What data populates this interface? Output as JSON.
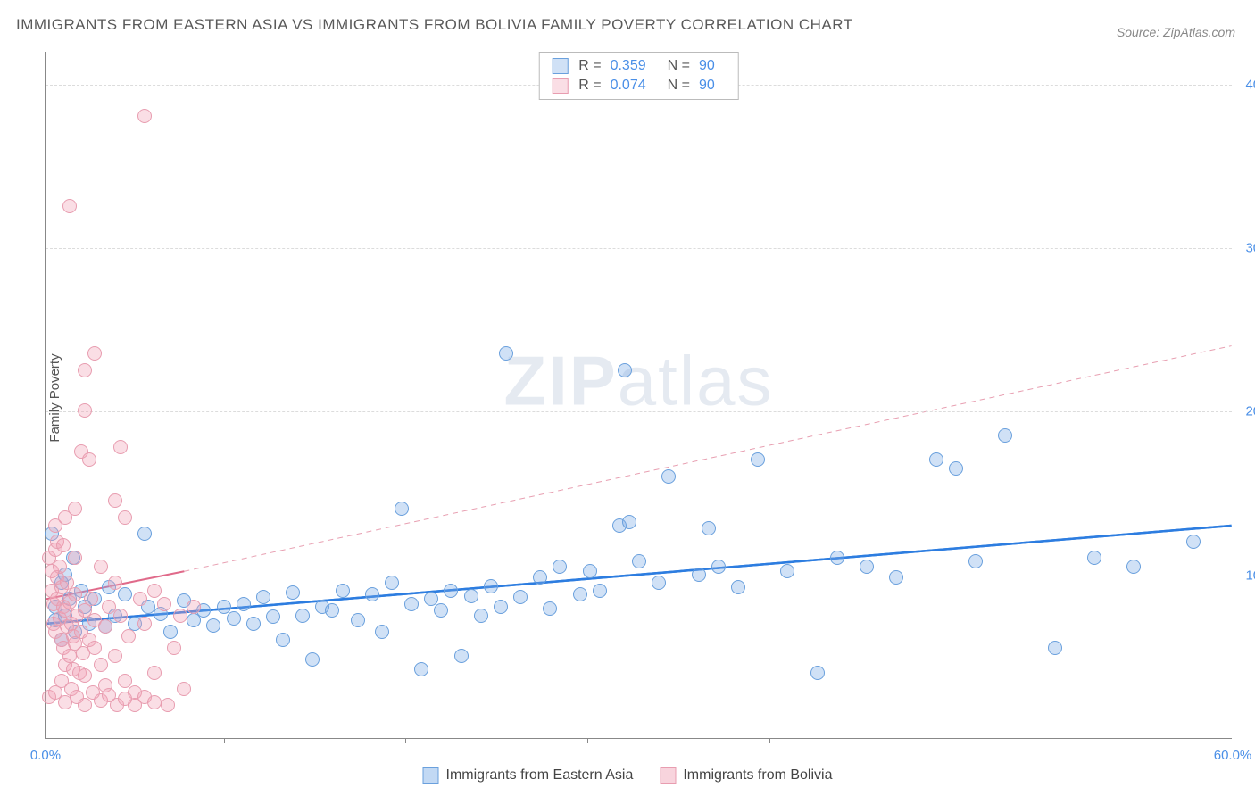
{
  "title": "IMMIGRANTS FROM EASTERN ASIA VS IMMIGRANTS FROM BOLIVIA FAMILY POVERTY CORRELATION CHART",
  "source": "Source: ZipAtlas.com",
  "y_axis_title": "Family Poverty",
  "watermark_bold": "ZIP",
  "watermark_light": "atlas",
  "chart": {
    "type": "scatter",
    "xlim": [
      0,
      60
    ],
    "ylim": [
      0,
      42
    ],
    "x_ticks": [
      0.0,
      60.0
    ],
    "x_minor_ticks": [
      9.0,
      18.2,
      27.4,
      36.6,
      45.8,
      55.0
    ],
    "x_tick_labels": [
      "0.0%",
      "60.0%"
    ],
    "y_ticks": [
      10.0,
      20.0,
      30.0,
      40.0
    ],
    "y_tick_labels": [
      "10.0%",
      "20.0%",
      "30.0%",
      "40.0%"
    ],
    "grid_color": "#dcdcdc",
    "background_color": "#ffffff",
    "axis_color": "#888888"
  },
  "series": [
    {
      "name": "Immigrants from Eastern Asia",
      "fill_color": "rgba(120,170,230,0.35)",
      "stroke_color": "#6aa0dd",
      "marker_radius": 8,
      "R_label": "R =",
      "R_value": "0.359",
      "N_label": "N =",
      "N_value": "90",
      "trend": {
        "x1": 0,
        "y1": 7.0,
        "x2": 60,
        "y2": 13.0,
        "color": "#2d7de0",
        "width": 2.5,
        "dash": "none"
      },
      "trend_extrap": {
        "x1": 0,
        "y1": 7.0,
        "x2": 60,
        "y2": 13.0,
        "color": "#2d7de0",
        "width": 2.5,
        "dash": "none"
      },
      "points": [
        [
          0.5,
          7.2
        ],
        [
          0.5,
          8.0
        ],
        [
          0.8,
          6.0
        ],
        [
          0.8,
          9.5
        ],
        [
          1.0,
          7.5
        ],
        [
          1.0,
          10.0
        ],
        [
          1.2,
          8.5
        ],
        [
          1.4,
          11.0
        ],
        [
          0.3,
          12.5
        ],
        [
          1.5,
          6.5
        ],
        [
          1.8,
          9.0
        ],
        [
          2.0,
          8.0
        ],
        [
          2.2,
          7.0
        ],
        [
          2.5,
          8.5
        ],
        [
          3.0,
          6.8
        ],
        [
          3.2,
          9.2
        ],
        [
          3.5,
          7.5
        ],
        [
          4.0,
          8.8
        ],
        [
          4.5,
          7.0
        ],
        [
          5.0,
          12.5
        ],
        [
          5.2,
          8.0
        ],
        [
          5.8,
          7.6
        ],
        [
          6.3,
          6.5
        ],
        [
          7.0,
          8.4
        ],
        [
          7.5,
          7.2
        ],
        [
          8.0,
          7.8
        ],
        [
          8.5,
          6.9
        ],
        [
          9.0,
          8.0
        ],
        [
          9.5,
          7.3
        ],
        [
          10.0,
          8.2
        ],
        [
          10.5,
          7.0
        ],
        [
          11.0,
          8.6
        ],
        [
          11.5,
          7.4
        ],
        [
          12.0,
          6.0
        ],
        [
          12.5,
          8.9
        ],
        [
          13.0,
          7.5
        ],
        [
          13.5,
          4.8
        ],
        [
          14.0,
          8.0
        ],
        [
          14.5,
          7.8
        ],
        [
          15.0,
          9.0
        ],
        [
          15.8,
          7.2
        ],
        [
          16.5,
          8.8
        ],
        [
          17.0,
          6.5
        ],
        [
          17.5,
          9.5
        ],
        [
          18.0,
          14.0
        ],
        [
          18.5,
          8.2
        ],
        [
          19.0,
          4.2
        ],
        [
          19.5,
          8.5
        ],
        [
          20.0,
          7.8
        ],
        [
          20.5,
          9.0
        ],
        [
          21.0,
          5.0
        ],
        [
          21.5,
          8.7
        ],
        [
          22.0,
          7.5
        ],
        [
          22.5,
          9.3
        ],
        [
          23.0,
          8.0
        ],
        [
          23.3,
          23.5
        ],
        [
          24.0,
          8.6
        ],
        [
          25.0,
          9.8
        ],
        [
          25.5,
          7.9
        ],
        [
          26.0,
          10.5
        ],
        [
          27.0,
          8.8
        ],
        [
          27.5,
          10.2
        ],
        [
          28.0,
          9.0
        ],
        [
          29.0,
          13.0
        ],
        [
          29.3,
          22.5
        ],
        [
          29.5,
          13.2
        ],
        [
          30.0,
          10.8
        ],
        [
          31.0,
          9.5
        ],
        [
          31.5,
          16.0
        ],
        [
          33.0,
          10.0
        ],
        [
          33.5,
          12.8
        ],
        [
          34.0,
          10.5
        ],
        [
          35.0,
          9.2
        ],
        [
          36.0,
          17.0
        ],
        [
          37.5,
          10.2
        ],
        [
          39.0,
          4.0
        ],
        [
          40.0,
          11.0
        ],
        [
          41.5,
          10.5
        ],
        [
          43.0,
          9.8
        ],
        [
          45.0,
          17.0
        ],
        [
          46.0,
          16.5
        ],
        [
          47.0,
          10.8
        ],
        [
          48.5,
          18.5
        ],
        [
          51.0,
          5.5
        ],
        [
          53.0,
          11.0
        ],
        [
          55.0,
          10.5
        ],
        [
          58.0,
          12.0
        ]
      ]
    },
    {
      "name": "Immigrants from Bolivia",
      "fill_color": "rgba(240,160,180,0.35)",
      "stroke_color": "#e89db0",
      "marker_radius": 8,
      "R_label": "R =",
      "R_value": "0.074",
      "N_label": "N =",
      "N_value": "90",
      "trend": {
        "x1": 0,
        "y1": 8.5,
        "x2": 7,
        "y2": 10.2,
        "color": "#e06a8a",
        "width": 2,
        "dash": "none"
      },
      "trend_extrap": {
        "x1": 7,
        "y1": 10.2,
        "x2": 60,
        "y2": 24.0,
        "color": "#e8a0b2",
        "width": 1,
        "dash": "6,5"
      },
      "points": [
        [
          0.2,
          11.0
        ],
        [
          0.3,
          10.2
        ],
        [
          0.3,
          9.0
        ],
        [
          0.4,
          8.2
        ],
        [
          0.4,
          7.0
        ],
        [
          0.5,
          11.5
        ],
        [
          0.5,
          6.5
        ],
        [
          0.6,
          9.8
        ],
        [
          0.6,
          8.5
        ],
        [
          0.7,
          7.3
        ],
        [
          0.7,
          10.5
        ],
        [
          0.8,
          6.0
        ],
        [
          0.8,
          9.2
        ],
        [
          0.9,
          5.5
        ],
        [
          0.9,
          8.0
        ],
        [
          1.0,
          7.8
        ],
        [
          1.0,
          4.5
        ],
        [
          1.1,
          6.8
        ],
        [
          1.1,
          9.5
        ],
        [
          1.2,
          5.0
        ],
        [
          1.2,
          8.3
        ],
        [
          1.3,
          7.0
        ],
        [
          1.4,
          4.2
        ],
        [
          1.4,
          6.2
        ],
        [
          1.5,
          8.8
        ],
        [
          1.5,
          5.8
        ],
        [
          1.6,
          7.5
        ],
        [
          1.7,
          4.0
        ],
        [
          1.8,
          6.5
        ],
        [
          1.9,
          5.2
        ],
        [
          2.0,
          7.8
        ],
        [
          2.0,
          3.8
        ],
        [
          2.2,
          6.0
        ],
        [
          2.3,
          8.5
        ],
        [
          2.5,
          5.5
        ],
        [
          2.5,
          7.2
        ],
        [
          2.8,
          4.5
        ],
        [
          3.0,
          6.8
        ],
        [
          3.0,
          3.2
        ],
        [
          3.2,
          8.0
        ],
        [
          3.5,
          5.0
        ],
        [
          3.8,
          7.5
        ],
        [
          4.0,
          3.5
        ],
        [
          4.2,
          6.2
        ],
        [
          4.5,
          2.8
        ],
        [
          5.0,
          7.0
        ],
        [
          5.5,
          4.0
        ],
        [
          6.0,
          8.2
        ],
        [
          6.5,
          5.5
        ],
        [
          7.0,
          3.0
        ],
        [
          0.5,
          13.0
        ],
        [
          1.5,
          14.0
        ],
        [
          1.8,
          17.5
        ],
        [
          2.2,
          17.0
        ],
        [
          2.0,
          20.0
        ],
        [
          2.0,
          22.5
        ],
        [
          2.5,
          23.5
        ],
        [
          1.2,
          32.5
        ],
        [
          5.0,
          38.0
        ],
        [
          3.5,
          14.5
        ],
        [
          3.8,
          17.8
        ],
        [
          4.0,
          13.5
        ],
        [
          0.2,
          2.5
        ],
        [
          0.5,
          2.8
        ],
        [
          0.8,
          3.5
        ],
        [
          1.0,
          2.2
        ],
        [
          1.3,
          3.0
        ],
        [
          1.6,
          2.5
        ],
        [
          2.0,
          2.0
        ],
        [
          2.4,
          2.8
        ],
        [
          2.8,
          2.3
        ],
        [
          3.2,
          2.6
        ],
        [
          3.6,
          2.0
        ],
        [
          4.0,
          2.4
        ],
        [
          4.5,
          2.0
        ],
        [
          5.0,
          2.5
        ],
        [
          5.5,
          2.2
        ],
        [
          6.2,
          2.0
        ],
        [
          1.0,
          13.5
        ],
        [
          1.5,
          11.0
        ],
        [
          0.6,
          12.0
        ],
        [
          0.9,
          11.8
        ],
        [
          2.8,
          10.5
        ],
        [
          3.5,
          9.5
        ],
        [
          4.8,
          8.5
        ],
        [
          5.5,
          9.0
        ],
        [
          6.8,
          7.5
        ],
        [
          7.5,
          8.0
        ]
      ]
    }
  ],
  "bottom_legend": [
    {
      "label": "Immigrants from Eastern Asia",
      "fill": "rgba(120,170,230,0.45)",
      "stroke": "#6aa0dd"
    },
    {
      "label": "Immigrants from Bolivia",
      "fill": "rgba(240,160,180,0.45)",
      "stroke": "#e89db0"
    }
  ]
}
